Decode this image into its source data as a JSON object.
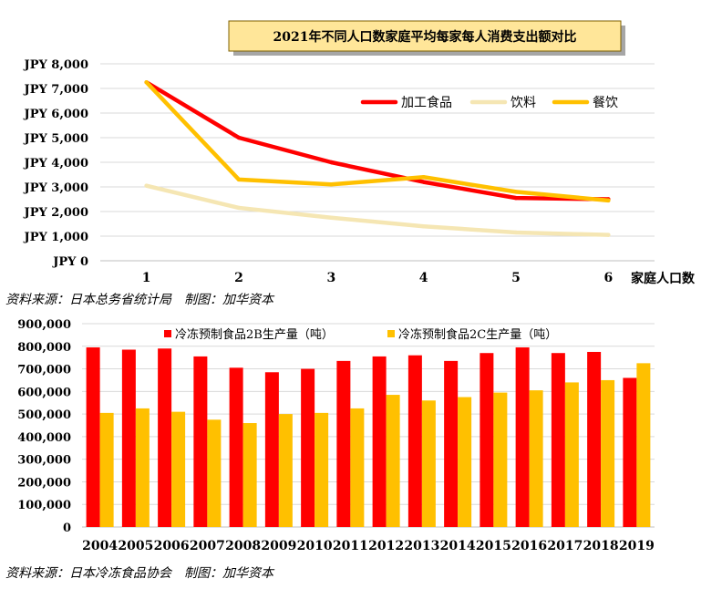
{
  "chart_data": [
    {
      "type": "line",
      "title": "2021年不同人口数家庭平均每家每人消费支出额对比",
      "xlabel": "家庭人口数",
      "ylabel": "",
      "categories": [
        "1",
        "2",
        "3",
        "4",
        "5",
        "6"
      ],
      "ylim": [
        0,
        8000
      ],
      "yticks": [
        "JPY 0",
        "JPY 1,000",
        "JPY 2,000",
        "JPY 3,000",
        "JPY 4,000",
        "JPY 5,000",
        "JPY 6,000",
        "JPY 7,000",
        "JPY 8,000"
      ],
      "legend_position": "top-right",
      "grid": true,
      "series": [
        {
          "name": "加工食品",
          "color": "#ff0000",
          "values": [
            7250,
            5000,
            4000,
            3200,
            2550,
            2500
          ]
        },
        {
          "name": "饮料",
          "color": "#f5e6b3",
          "values": [
            3050,
            2150,
            1750,
            1400,
            1150,
            1050
          ]
        },
        {
          "name": "餐饮",
          "color": "#ffc000",
          "values": [
            7250,
            3300,
            3100,
            3400,
            2800,
            2450
          ]
        }
      ],
      "source": "资料来源：日本总务省统计局　制图：加华资本"
    },
    {
      "type": "bar",
      "title": "",
      "xlabel": "",
      "ylabel": "",
      "categories": [
        "2004",
        "2005",
        "2006",
        "2007",
        "2008",
        "2009",
        "2010",
        "2011",
        "2012",
        "2013",
        "2014",
        "2015",
        "2016",
        "2017",
        "2018",
        "2019"
      ],
      "ylim": [
        0,
        900000
      ],
      "yticks": [
        "0",
        "100,000",
        "200,000",
        "300,000",
        "400,000",
        "500,000",
        "600,000",
        "700,000",
        "800,000",
        "900,000"
      ],
      "legend_position": "top",
      "grid": true,
      "series": [
        {
          "name": "冷冻预制食品2B生产量（吨）",
          "color": "#ff0000",
          "values": [
            795000,
            785000,
            790000,
            755000,
            705000,
            685000,
            700000,
            735000,
            755000,
            760000,
            735000,
            770000,
            795000,
            770000,
            775000,
            660000
          ]
        },
        {
          "name": "冷冻预制食品2C生产量（吨）",
          "color": "#ffc000",
          "values": [
            505000,
            525000,
            510000,
            475000,
            460000,
            500000,
            505000,
            525000,
            585000,
            560000,
            575000,
            595000,
            605000,
            640000,
            650000,
            725000
          ]
        }
      ],
      "source": "资料来源：日本冷冻食品协会　制图：加华资本"
    }
  ],
  "colors": {
    "title_box_bg": "#ffe699",
    "title_box_border": "#7f6000",
    "grid": "#d9d9d9",
    "axis": "#bfbfbf"
  }
}
